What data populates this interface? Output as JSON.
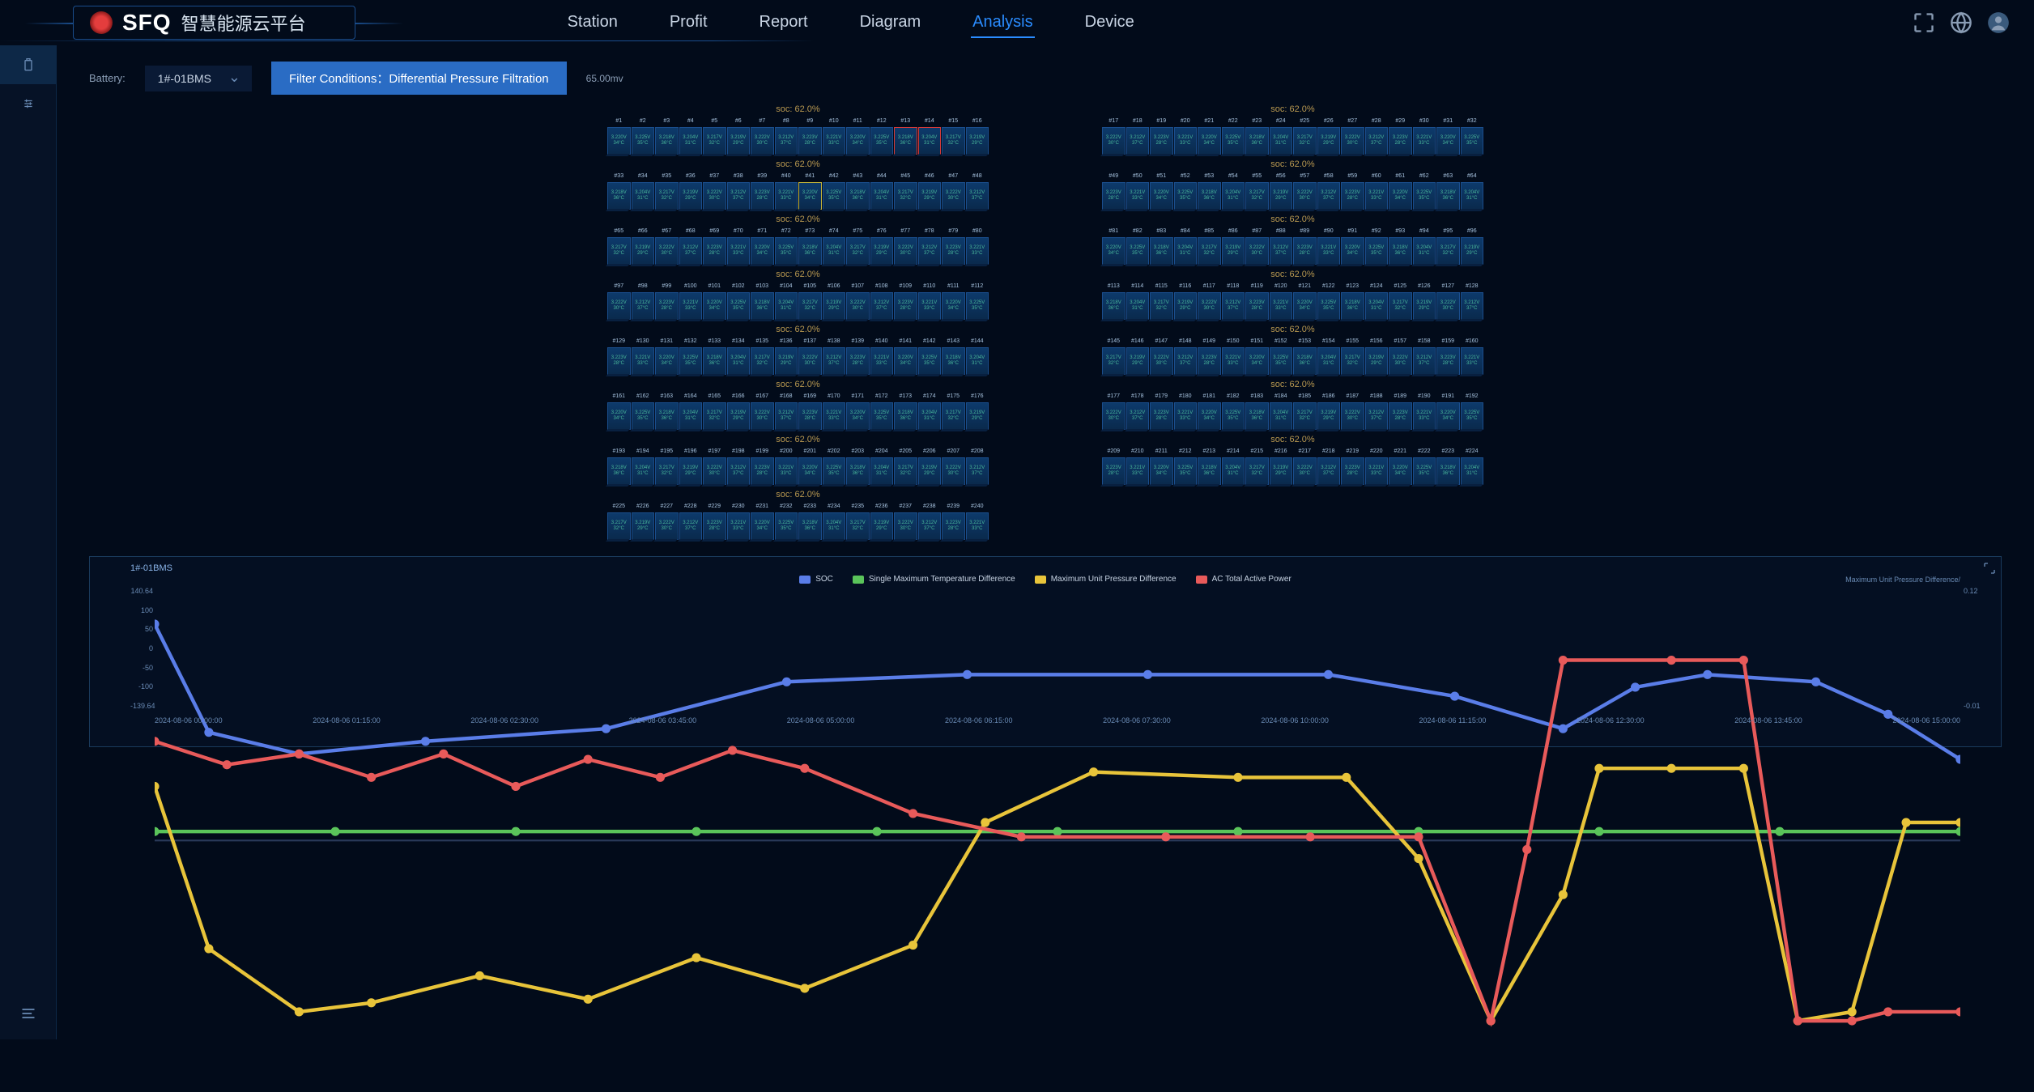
{
  "header": {
    "logo_text": "SFQ",
    "logo_sub": "智慧能源云平台",
    "nav": [
      {
        "label": "Station",
        "active": false
      },
      {
        "label": "Profit",
        "active": false
      },
      {
        "label": "Report",
        "active": false
      },
      {
        "label": "Diagram",
        "active": false
      },
      {
        "label": "Analysis",
        "active": true
      },
      {
        "label": "Device",
        "active": false
      }
    ]
  },
  "filters": {
    "battery_label": "Battery:",
    "battery_value": "1#-01BMS",
    "button_label": "Filter Conditions：Differential Pressure Filtration",
    "threshold": "65.00mv"
  },
  "cell_grid": {
    "soc_label": "soc: 62.0%",
    "voltage_sample": "3.221V",
    "temp_sample": "33°C",
    "rows_per_side": 8,
    "cells_per_row": 16,
    "last_row_left_cells": 16,
    "total_cells": 240,
    "alert_cells": [
      13,
      14
    ],
    "warn_cells": [
      41
    ],
    "cell_colors": {
      "bg_top": "#0d3a6b",
      "bg_bottom": "#0a2a4d",
      "border": "#1a4d8c",
      "alert_border": "#d43a3a",
      "warn_border": "#c4b43a",
      "value_color": "#4ab89a"
    }
  },
  "chart": {
    "title": "1#-01BMS",
    "y2_label": "Maximum Unit Pressure Difference/",
    "legend": [
      {
        "name": "SOC",
        "color": "#5a7de8"
      },
      {
        "name": "Single Maximum Temperature Difference",
        "color": "#5ac45a"
      },
      {
        "name": "Maximum Unit Pressure Difference",
        "color": "#e8c43a"
      },
      {
        "name": "AC Total Active Power",
        "color": "#e85a5a"
      }
    ],
    "y_ticks": [
      "140.64",
      "100",
      "50",
      "0",
      "-50",
      "-100",
      "-139.64"
    ],
    "y2_ticks": [
      "0.12",
      "",
      "",
      "",
      "",
      "",
      "-0.01"
    ],
    "x_ticks": [
      "2024-08-06 00:00:00",
      "2024-08-06 01:15:00",
      "2024-08-06 02:30:00",
      "2024-08-06 03:45:00",
      "2024-08-06 05:00:00",
      "2024-08-06 06:15:00",
      "2024-08-06 07:30:00",
      "2024-08-06 10:00:00",
      "2024-08-06 11:15:00",
      "2024-08-06 12:30:00",
      "2024-08-06 13:45:00",
      "2024-08-06 15:00:00"
    ],
    "series": {
      "soc": {
        "color": "#5a7de8",
        "points": [
          [
            0,
            120
          ],
          [
            3,
            60
          ],
          [
            8,
            48
          ],
          [
            15,
            55
          ],
          [
            25,
            62
          ],
          [
            35,
            88
          ],
          [
            45,
            92
          ],
          [
            55,
            92
          ],
          [
            65,
            92
          ],
          [
            72,
            80
          ],
          [
            78,
            62
          ],
          [
            82,
            85
          ],
          [
            86,
            92
          ],
          [
            92,
            88
          ],
          [
            96,
            70
          ],
          [
            100,
            45
          ]
        ]
      },
      "temp": {
        "color": "#5ac45a",
        "points": [
          [
            0,
            5
          ],
          [
            10,
            5
          ],
          [
            20,
            5
          ],
          [
            30,
            5
          ],
          [
            40,
            5
          ],
          [
            50,
            5
          ],
          [
            60,
            5
          ],
          [
            70,
            5
          ],
          [
            80,
            5
          ],
          [
            90,
            5
          ],
          [
            100,
            5
          ]
        ]
      },
      "pressure": {
        "color": "#e8c43a",
        "points": [
          [
            0,
            30
          ],
          [
            3,
            -60
          ],
          [
            8,
            -95
          ],
          [
            12,
            -90
          ],
          [
            18,
            -75
          ],
          [
            24,
            -88
          ],
          [
            30,
            -65
          ],
          [
            36,
            -82
          ],
          [
            42,
            -58
          ],
          [
            46,
            10
          ],
          [
            52,
            38
          ],
          [
            60,
            35
          ],
          [
            66,
            35
          ],
          [
            70,
            -10
          ],
          [
            74,
            -100
          ],
          [
            78,
            -30
          ],
          [
            80,
            40
          ],
          [
            84,
            40
          ],
          [
            88,
            40
          ],
          [
            91,
            -100
          ],
          [
            94,
            -95
          ],
          [
            97,
            10
          ],
          [
            100,
            10
          ]
        ]
      },
      "power": {
        "color": "#e85a5a",
        "points": [
          [
            0,
            55
          ],
          [
            4,
            42
          ],
          [
            8,
            48
          ],
          [
            12,
            35
          ],
          [
            16,
            48
          ],
          [
            20,
            30
          ],
          [
            24,
            45
          ],
          [
            28,
            35
          ],
          [
            32,
            50
          ],
          [
            36,
            40
          ],
          [
            42,
            15
          ],
          [
            48,
            2
          ],
          [
            56,
            2
          ],
          [
            64,
            2
          ],
          [
            70,
            2
          ],
          [
            74,
            -100
          ],
          [
            76,
            -5
          ],
          [
            78,
            100
          ],
          [
            84,
            100
          ],
          [
            88,
            100
          ],
          [
            91,
            -100
          ],
          [
            94,
            -100
          ],
          [
            96,
            -95
          ],
          [
            100,
            -95
          ]
        ]
      }
    },
    "ylim": [
      -139.64,
      140.64
    ]
  },
  "colors": {
    "bg": "#020b1a",
    "panel": "#061226",
    "accent": "#2a8cff",
    "border": "#1a4d8c"
  }
}
